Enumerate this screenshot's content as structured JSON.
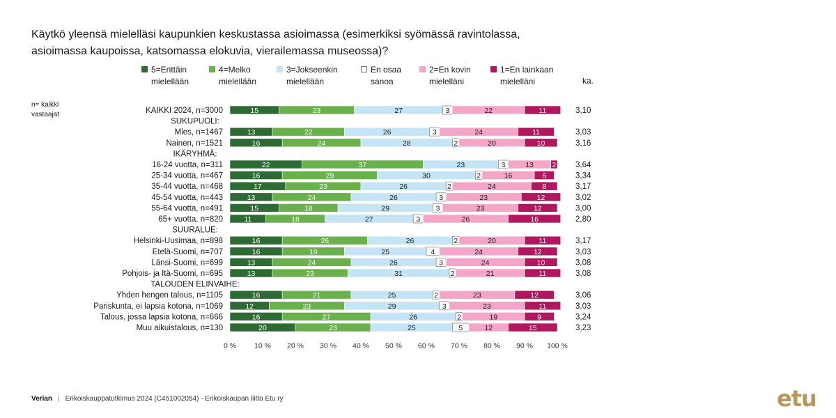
{
  "title_line1": "Käytkö yleensä mielelläsi kaupunkien keskustassa asioimassa (esimerkiksi syömässä ravintolassa,",
  "title_line2": "asioimassa kaupoissa, katsomassa elokuvia, vierailemassa museossa)?",
  "note_line1": "n= kaikki",
  "note_line2": "vastaajat",
  "ka_header": "ka.",
  "colors": {
    "s5": "#2e6b34",
    "s4": "#6ab04c",
    "s3": "#c5e4f5",
    "s0": "#ffffff",
    "s2": "#f4a6c8",
    "s1": "#b0175e"
  },
  "footer": {
    "brand": "Verian",
    "text": "Erikoiskauppatutkimus 2024 (C451002054)  -  Erikoiskaupan liitto Etu ry"
  },
  "logo": "etu",
  "chart_data": {
    "type": "bar",
    "stacked": true,
    "orientation": "horizontal",
    "legend": [
      {
        "key": "s5",
        "line1": "5=Erittäin",
        "line2": "mielellään"
      },
      {
        "key": "s4",
        "line1": "4=Melko",
        "line2": "mielellään"
      },
      {
        "key": "s3",
        "line1": "3=Jokseenkin",
        "line2": "mielellään"
      },
      {
        "key": "s0",
        "line1": "En osaa",
        "line2": "sanoa"
      },
      {
        "key": "s2",
        "line1": "2=En kovin",
        "line2": "mielelläni"
      },
      {
        "key": "s1",
        "line1": "1=En lainkaan",
        "line2": "mielelläni"
      }
    ],
    "series_order": [
      "s5",
      "s4",
      "s3",
      "s0",
      "s2",
      "s1"
    ],
    "xlim": [
      0,
      100
    ],
    "x_ticks": [
      "0 %",
      "10 %",
      "20 %",
      "30 %",
      "40 %",
      "50 %",
      "60 %",
      "70 %",
      "80 %",
      "90 %",
      "100 %"
    ],
    "rows": [
      {
        "label": "KAIKKI 2024, n=3000",
        "values": [
          15,
          23,
          27,
          3,
          22,
          11
        ],
        "ka": "3,10"
      },
      {
        "label": "SUKUPUOLI:",
        "header": true
      },
      {
        "label": "Mies, n=1467",
        "values": [
          13,
          22,
          26,
          3,
          24,
          11
        ],
        "ka": "3,03"
      },
      {
        "label": "Nainen, n=1521",
        "values": [
          16,
          24,
          28,
          2,
          20,
          10
        ],
        "ka": "3,16"
      },
      {
        "label": "IKÄRYHMÄ:",
        "header": true
      },
      {
        "label": "16-24 vuotta, n=311",
        "values": [
          22,
          37,
          23,
          3,
          13,
          2
        ],
        "ka": "3,64"
      },
      {
        "label": "25-34 vuotta, n=467",
        "values": [
          16,
          29,
          30,
          2,
          16,
          6
        ],
        "ka": "3,34"
      },
      {
        "label": "35-44 vuotta, n=468",
        "values": [
          17,
          23,
          26,
          2,
          24,
          8
        ],
        "ka": "3,17"
      },
      {
        "label": "45-54 vuotta, n=443",
        "values": [
          13,
          24,
          26,
          3,
          23,
          12
        ],
        "ka": "3,02"
      },
      {
        "label": "55-64 vuotta, n=491",
        "values": [
          15,
          18,
          29,
          3,
          23,
          12
        ],
        "ka": "3,00"
      },
      {
        "label": "65+ vuotta, n=820",
        "values": [
          11,
          18,
          27,
          3,
          26,
          16
        ],
        "ka": "2,80"
      },
      {
        "label": "SUURALUE:",
        "header": true
      },
      {
        "label": "Helsinki-Uusimaa, n=898",
        "values": [
          16,
          26,
          26,
          2,
          20,
          11
        ],
        "ka": "3,17"
      },
      {
        "label": "Etelä-Suomi, n=707",
        "values": [
          16,
          19,
          25,
          4,
          24,
          12
        ],
        "ka": "3,03"
      },
      {
        "label": "Länsi-Suomi, n=699",
        "values": [
          13,
          24,
          26,
          3,
          24,
          10
        ],
        "ka": "3,08"
      },
      {
        "label": "Pohjois- ja Itä-Suomi, n=695",
        "values": [
          13,
          23,
          31,
          2,
          21,
          11
        ],
        "ka": "3,08"
      },
      {
        "label": "TALOUDEN ELINVAIHE:",
        "header": true
      },
      {
        "label": "Yhden hengen talous, n=1105",
        "values": [
          16,
          21,
          25,
          2,
          23,
          12
        ],
        "ka": "3,06"
      },
      {
        "label": "Pariskunta, ei lapsia kotona, n=1069",
        "values": [
          12,
          23,
          29,
          3,
          23,
          11
        ],
        "ka": "3,03"
      },
      {
        "label": "Talous, jossa lapsia kotona, n=666",
        "values": [
          16,
          27,
          26,
          2,
          19,
          9
        ],
        "ka": "3,24"
      },
      {
        "label": "Muu aikuistalous, n=130",
        "values": [
          20,
          23,
          25,
          5,
          12,
          15
        ],
        "ka": "3,23"
      }
    ]
  }
}
